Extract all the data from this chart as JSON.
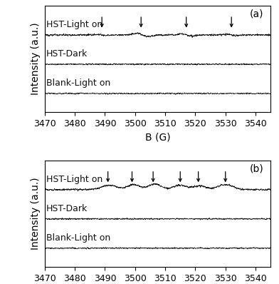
{
  "x_min": 3470,
  "x_max": 3545,
  "x_ticks": [
    3470,
    3480,
    3490,
    3500,
    3510,
    3520,
    3530,
    3540
  ],
  "xlabel": "B (G)",
  "ylabel": "Intensity (a.u.)",
  "panel_a_label": "(a)",
  "panel_b_label": "(b)",
  "panel_a_arrows": [
    3489,
    3502,
    3517,
    3532
  ],
  "panel_b_arrows": [
    3491,
    3499,
    3506,
    3515,
    3521,
    3530
  ],
  "trace_labels": [
    "HST-Light on",
    "HST-Dark",
    "Blank-Light on"
  ],
  "trace_offsets": [
    0.28,
    0.0,
    -0.28
  ],
  "background_color": "#ffffff",
  "fontsize_label": 10,
  "fontsize_tick": 9,
  "fontsize_panel": 10,
  "fontsize_trace_label": 9,
  "signal_amp_a": 0.045,
  "signal_amp_b": 0.06,
  "noise_light": 0.007,
  "noise_dark": 0.005,
  "noise_blank": 0.006
}
